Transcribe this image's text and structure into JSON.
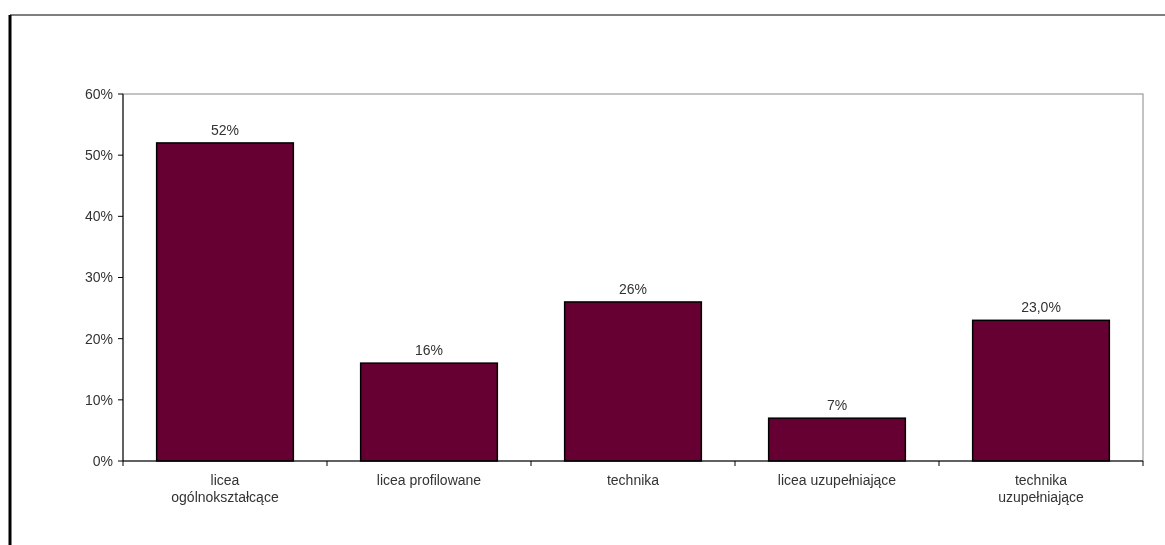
{
  "chart_data": {
    "type": "bar",
    "categories": [
      "licea ogólnokształcące",
      "licea profilowane",
      "technika",
      "licea uzupełniające",
      "technika uzupełniające"
    ],
    "values": [
      52,
      16,
      26,
      7,
      23
    ],
    "value_labels": [
      "52%",
      "16%",
      "26%",
      "7%",
      "23,0%"
    ],
    "color": "#660033",
    "ylim": [
      0,
      60
    ],
    "yticks": [
      {
        "value": 0,
        "label": "0%"
      },
      {
        "value": 10,
        "label": "10%"
      },
      {
        "value": 20,
        "label": "20%"
      },
      {
        "value": 30,
        "label": "30%"
      },
      {
        "value": 40,
        "label": "40%"
      },
      {
        "value": 50,
        "label": "50%"
      },
      {
        "value": 60,
        "label": "60%"
      }
    ],
    "grid": false
  }
}
